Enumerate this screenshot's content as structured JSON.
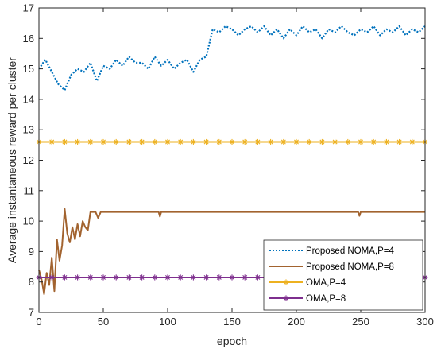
{
  "chart_data": {
    "type": "line",
    "xlabel": "epoch",
    "ylabel": "Average instantaneous reward per cluster",
    "xlim": [
      0,
      300
    ],
    "ylim": [
      7,
      17
    ],
    "xticks": [
      0,
      50,
      100,
      150,
      200,
      250,
      300
    ],
    "yticks": [
      7,
      8,
      9,
      10,
      11,
      12,
      13,
      14,
      15,
      16,
      17
    ],
    "grid": false,
    "legend_position": "bottom-right",
    "series": [
      {
        "name": "Proposed NOMA,P=4",
        "color": "#0072BD",
        "style": "dotted",
        "x": [
          0,
          5,
          10,
          15,
          20,
          25,
          30,
          35,
          40,
          45,
          50,
          55,
          60,
          65,
          70,
          75,
          80,
          85,
          90,
          95,
          100,
          105,
          110,
          115,
          120,
          125,
          130,
          135,
          140,
          145,
          150,
          155,
          160,
          165,
          170,
          175,
          180,
          185,
          190,
          195,
          200,
          205,
          210,
          215,
          220,
          225,
          230,
          235,
          240,
          245,
          250,
          255,
          260,
          265,
          270,
          275,
          280,
          285,
          290,
          295,
          300
        ],
        "y": [
          15.0,
          15.3,
          14.9,
          14.5,
          14.3,
          14.8,
          15.0,
          14.9,
          15.2,
          14.6,
          15.1,
          15.0,
          15.3,
          15.1,
          15.4,
          15.2,
          15.2,
          15.0,
          15.4,
          15.1,
          15.3,
          15.0,
          15.2,
          15.3,
          14.9,
          15.3,
          15.4,
          16.3,
          16.2,
          16.4,
          16.3,
          16.1,
          16.3,
          16.4,
          16.2,
          16.4,
          16.1,
          16.3,
          16.0,
          16.3,
          16.1,
          16.4,
          16.2,
          16.3,
          16.0,
          16.3,
          16.2,
          16.4,
          16.2,
          16.1,
          16.3,
          16.2,
          16.4,
          16.1,
          16.3,
          16.2,
          16.4,
          16.1,
          16.3,
          16.2,
          16.4
        ]
      },
      {
        "name": "Proposed NOMA,P=8",
        "color": "#A2632F",
        "style": "solid",
        "x": [
          0,
          2,
          4,
          6,
          8,
          10,
          12,
          14,
          16,
          18,
          20,
          22,
          24,
          26,
          28,
          30,
          32,
          34,
          36,
          38,
          40,
          42,
          44,
          46,
          48,
          50,
          55,
          60,
          70,
          80,
          90,
          93,
          94,
          95,
          96,
          100,
          150,
          200,
          248,
          249,
          250,
          251,
          300
        ],
        "y": [
          8.4,
          8.1,
          7.6,
          8.3,
          7.9,
          8.8,
          7.7,
          9.4,
          8.7,
          9.2,
          10.4,
          9.6,
          9.3,
          9.8,
          9.4,
          9.9,
          9.5,
          10.0,
          9.8,
          9.7,
          10.3,
          10.3,
          10.3,
          10.1,
          10.3,
          10.3,
          10.3,
          10.3,
          10.3,
          10.3,
          10.3,
          10.3,
          10.15,
          10.3,
          10.3,
          10.3,
          10.3,
          10.3,
          10.3,
          10.17,
          10.3,
          10.3,
          10.3
        ]
      },
      {
        "name": "OMA,P=4",
        "color": "#EDB120",
        "style": "solid-asterisk",
        "x": [
          0,
          300
        ],
        "y": [
          12.6,
          12.6
        ]
      },
      {
        "name": "OMA,P=8",
        "color": "#7E2F8E",
        "style": "solid-asterisk",
        "x": [
          0,
          300
        ],
        "y": [
          8.15,
          8.15
        ]
      }
    ]
  }
}
